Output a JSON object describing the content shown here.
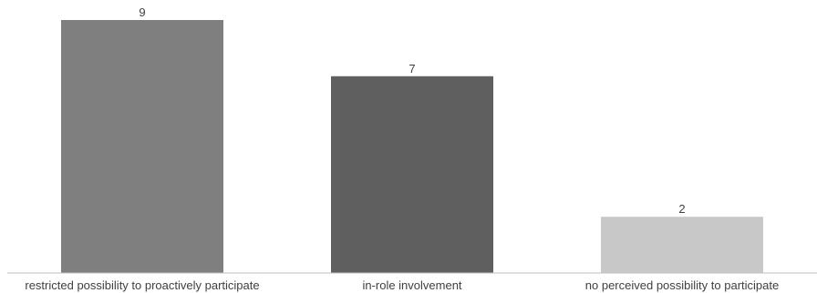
{
  "chart_data": {
    "type": "bar",
    "categories": [
      "restricted possibility to proactively participate",
      "in-role involvement",
      "no perceived possibility to participate"
    ],
    "values": [
      9,
      7,
      2
    ],
    "colors": [
      "#7f7f7f",
      "#5f5f5f",
      "#c8c8c8"
    ],
    "title": "",
    "xlabel": "",
    "ylabel": "",
    "ylim": [
      0,
      9
    ],
    "grid": false,
    "legend": "none",
    "data_labels": true
  }
}
